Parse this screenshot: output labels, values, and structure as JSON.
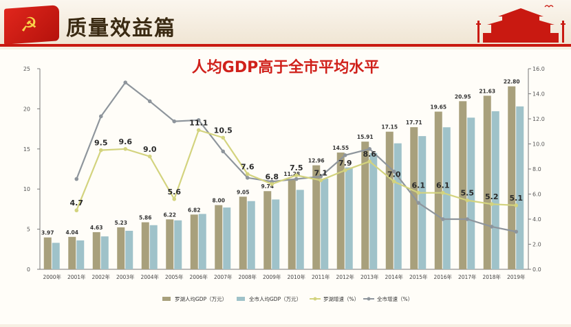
{
  "header": {
    "title": "质量效益篇"
  },
  "chart_data": {
    "type": "bar",
    "title": "人均GDP高于全市平均水平",
    "categories": [
      "2000年",
      "2001年",
      "2002年",
      "2003年",
      "2004年",
      "2005年",
      "2006年",
      "2007年",
      "2008年",
      "2009年",
      "2010年",
      "2011年",
      "2012年",
      "2013年",
      "2014年",
      "2015年",
      "2016年",
      "2017年",
      "2018年",
      "2019年"
    ],
    "ylim": [
      0,
      25
    ],
    "y_ticks": [
      0,
      5,
      10,
      15,
      20,
      25
    ],
    "y2lim": [
      0,
      16
    ],
    "y2_ticks": [
      "0.0",
      "2.0",
      "4.0",
      "6.0",
      "8.0",
      "10.0",
      "12.0",
      "14.0",
      "16.0"
    ],
    "series": [
      {
        "name": "罗湖人均GDP（万元）",
        "kind": "bar",
        "axis": "left",
        "color": "#a8a07c",
        "values": [
          3.97,
          4.04,
          4.63,
          5.23,
          5.86,
          6.22,
          6.82,
          8.0,
          9.05,
          9.74,
          11.28,
          12.96,
          14.55,
          15.91,
          17.15,
          17.71,
          19.65,
          20.95,
          21.63,
          22.8
        ],
        "labels": [
          "3.97",
          "4.04",
          "4.63",
          "5.23",
          "5.86",
          "6.22",
          "6.82",
          "8.00",
          "9.05",
          "9.74",
          "11.28",
          "12.96",
          "14.55",
          "15.91",
          "17.15",
          "17.71",
          "19.65",
          "20.95",
          "21.63",
          "22.80"
        ]
      },
      {
        "name": "全市人均GDP（万元）",
        "kind": "bar",
        "axis": "left",
        "color": "#9fc2c9",
        "values": [
          3.3,
          3.6,
          4.1,
          4.8,
          5.5,
          6.1,
          6.9,
          7.7,
          8.5,
          8.7,
          9.9,
          11.3,
          12.7,
          14.5,
          15.7,
          16.6,
          17.7,
          18.9,
          19.7,
          20.3
        ]
      },
      {
        "name": "罗湖增速（%）",
        "kind": "line",
        "axis": "right",
        "color": "#d3d37e",
        "values": [
          null,
          4.7,
          9.5,
          9.6,
          9.0,
          5.6,
          11.1,
          10.5,
          7.6,
          6.8,
          7.5,
          7.1,
          7.9,
          8.6,
          7.0,
          6.1,
          6.1,
          5.5,
          5.2,
          5.1
        ],
        "labels": [
          "",
          "4.7",
          "9.5",
          "9.6",
          "9.0",
          "5.6",
          "11.1",
          "10.5",
          "7.6",
          "6.8",
          "7.5",
          "7.1",
          "7.9",
          "8.6",
          "7.0",
          "6.1",
          "6.1",
          "5.5",
          "5.2",
          "5.1"
        ]
      },
      {
        "name": "全市增速（%）",
        "kind": "line",
        "axis": "right",
        "color": "#8e959c",
        "values": [
          null,
          7.2,
          12.2,
          14.9,
          13.4,
          11.8,
          11.9,
          9.4,
          7.3,
          7.0,
          7.2,
          7.4,
          9.1,
          9.6,
          7.8,
          5.3,
          4.0,
          4.0,
          3.4,
          3.0
        ]
      }
    ],
    "legend_position": "bottom",
    "grid": false
  }
}
